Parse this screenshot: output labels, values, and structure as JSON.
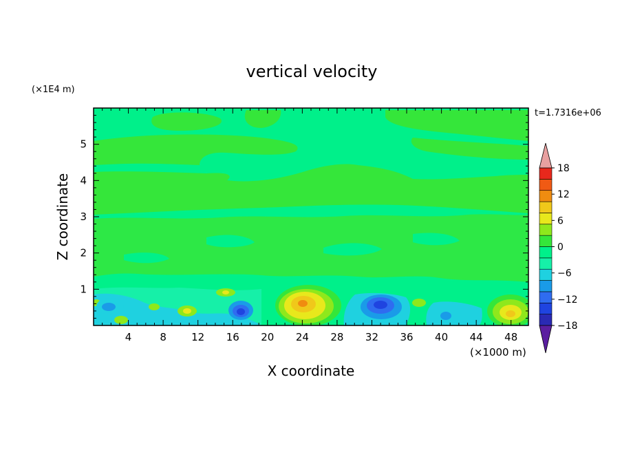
{
  "chart_data": {
    "type": "heatmap",
    "title": "vertical velocity",
    "xlabel": "X coordinate",
    "ylabel": "Z coordinate",
    "x_unit": "(×1000 m)",
    "y_unit": "(×1E4 m)",
    "time_label": "t=1.7316e+06",
    "xlim": [
      0,
      50
    ],
    "ylim": [
      0,
      6
    ],
    "x_ticks": [
      "4",
      "8",
      "12",
      "16",
      "20",
      "24",
      "28",
      "32",
      "36",
      "40",
      "44",
      "48"
    ],
    "y_ticks": [
      "1",
      "2",
      "3",
      "4",
      "5"
    ],
    "colorbar": {
      "labels": [
        "18",
        "12",
        "6",
        "0",
        "−6",
        "−12",
        "−18"
      ],
      "levels": [
        -21,
        -18,
        -15,
        -12,
        -9,
        -6,
        -3,
        0,
        3,
        6,
        9,
        12,
        15,
        18,
        21
      ],
      "colors": [
        "#5b1fa0",
        "#2a2ab4",
        "#1f44e0",
        "#2f6cf0",
        "#1a9be8",
        "#1fd1e0",
        "#16f0a8",
        "#00f08a",
        "#35e63a",
        "#8fe81c",
        "#e8e81c",
        "#f0c81a",
        "#f08c10",
        "#f05a14",
        "#e8281c",
        "#e8a0a0"
      ],
      "extend": "both"
    },
    "features": [
      {
        "x": 24.2,
        "z": 0.55,
        "w": 2.0,
        "type": "updraft",
        "peak": 9
      },
      {
        "x": 48.0,
        "z": 0.35,
        "w": 1.4,
        "type": "updraft",
        "peak": 9
      },
      {
        "x": 33.5,
        "z": 0.45,
        "w": 1.6,
        "type": "downdraft",
        "peak": -10
      },
      {
        "x": 17.0,
        "z": 0.35,
        "w": 0.8,
        "type": "downdraft",
        "peak": -11
      },
      {
        "x": 41.0,
        "z": 0.25,
        "w": 0.6,
        "type": "downdraft",
        "peak": -4
      },
      {
        "x": 2.5,
        "z": 0.35,
        "w": 1.6,
        "type": "downdraft",
        "peak": -4
      }
    ]
  }
}
